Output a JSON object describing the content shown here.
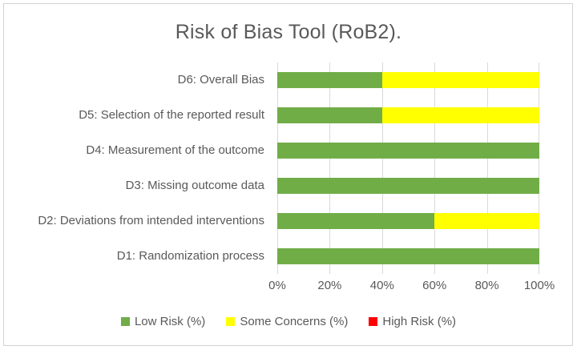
{
  "title": "Risk of Bias Tool (RoB2).",
  "colors": {
    "low_risk": "#70AD47",
    "some_concerns": "#FFFF00",
    "high_risk": "#FF0000",
    "gridline": "#D9D9D9",
    "text": "#595959",
    "frame_border": "#D2D2D2",
    "background": "#FFFFFF"
  },
  "chart_data": {
    "type": "bar",
    "orientation": "horizontal",
    "stacked": true,
    "title": "Risk of Bias Tool (RoB2).",
    "categories_top_to_bottom": [
      "D6: Overall Bias",
      "D5: Selection of the reported result",
      "D4: Measurement of the outcome",
      "D3: Missing outcome data",
      "D2: Deviations from intended interventions",
      "D1: Randomization process"
    ],
    "series": [
      {
        "name": "Low Risk (%)",
        "color": "#70AD47",
        "values": [
          40,
          40,
          100,
          100,
          60,
          100
        ]
      },
      {
        "name": "Some Concerns (%)",
        "color": "#FFFF00",
        "values": [
          60,
          60,
          0,
          0,
          40,
          0
        ]
      },
      {
        "name": "High Risk (%)",
        "color": "#FF0000",
        "values": [
          0,
          0,
          0,
          0,
          0,
          0
        ]
      }
    ],
    "x_ticks": [
      "0%",
      "20%",
      "40%",
      "60%",
      "80%",
      "100%"
    ],
    "xlim": [
      0,
      100
    ],
    "grid": true,
    "legend_position": "bottom"
  }
}
